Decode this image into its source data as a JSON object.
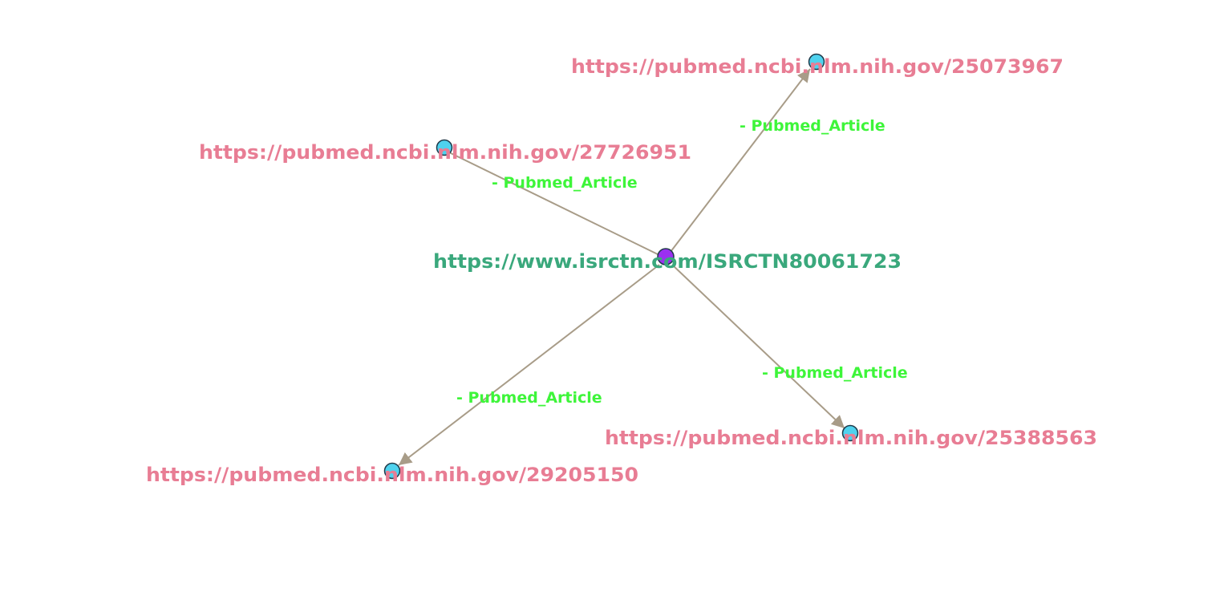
{
  "graph": {
    "colors": {
      "center_node_fill": "#9b30f0",
      "leaf_node_fill": "#4fd2ee",
      "center_label": "#3aa87c",
      "leaf_label": "#e87d94",
      "edge": "#a89c88",
      "edge_label": "#3ef53a"
    },
    "center": {
      "id": "center",
      "label": "https://www.isrctn.com/ISRCTN80061723"
    },
    "leaves": [
      {
        "id": "n25073967",
        "label": "https://pubmed.ncbi.nlm.nih.gov/25073967",
        "edge_label": "- Pubmed_Article"
      },
      {
        "id": "n27726951",
        "label": "https://pubmed.ncbi.nlm.nih.gov/27726951",
        "edge_label": "- Pubmed_Article"
      },
      {
        "id": "n29205150",
        "label": "https://pubmed.ncbi.nlm.nih.gov/29205150",
        "edge_label": "- Pubmed_Article"
      },
      {
        "id": "n25388563",
        "label": "https://pubmed.ncbi.nlm.nih.gov/25388563",
        "edge_label": "- Pubmed_Article"
      }
    ]
  }
}
